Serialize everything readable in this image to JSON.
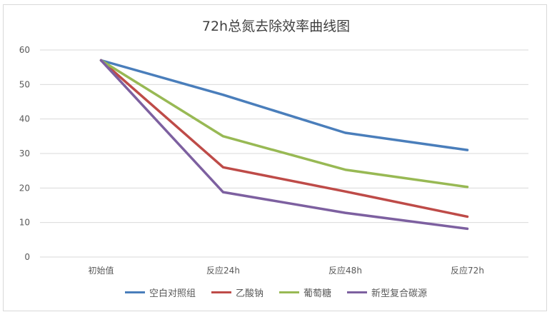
{
  "chart_data": {
    "type": "line",
    "title": "72h总氮去除效率曲线图",
    "categories": [
      "初始值",
      "反应24h",
      "反应48h",
      "反应72h"
    ],
    "ylim": [
      0,
      60
    ],
    "yticks": [
      0,
      10,
      20,
      30,
      40,
      50,
      60
    ],
    "grid": true,
    "legend_position": "bottom",
    "series": [
      {
        "name": "空白对照组",
        "color": "#4a7ebb",
        "values": [
          57,
          47,
          36,
          31
        ]
      },
      {
        "name": "乙酸钠",
        "color": "#be4b48",
        "values": [
          57,
          26,
          19,
          11.7
        ]
      },
      {
        "name": "葡萄糖",
        "color": "#98b954",
        "values": [
          57,
          35,
          25.3,
          20.3
        ]
      },
      {
        "name": "新型复合碳源",
        "color": "#7d60a0",
        "values": [
          57,
          18.8,
          12.8,
          8.2
        ]
      }
    ]
  }
}
